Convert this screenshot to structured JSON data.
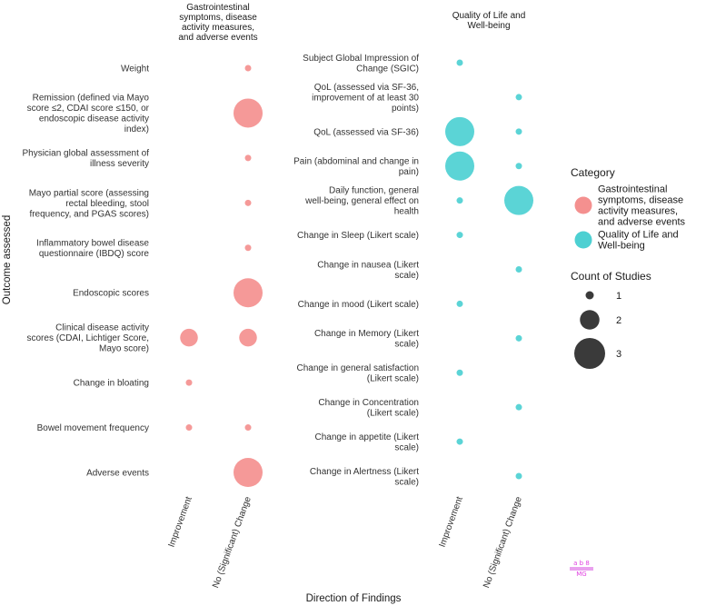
{
  "chart_data": {
    "type": "scatter",
    "xlabel": "Direction of Findings",
    "ylabel": "Outcome assessed",
    "x_categories": [
      "Improvement",
      "No (Significant) Change"
    ],
    "panels": [
      {
        "title": [
          "Gastrointestinal",
          "symptoms, disease",
          "activity measures,",
          "and adverse events"
        ],
        "category": "Gastrointestinal symptoms, disease activity measures, and adverse events",
        "color": "#F4908F",
        "rows": [
          {
            "label": [
              "Weight"
            ],
            "improvement": 0,
            "no_change": 1
          },
          {
            "label": [
              "Remission (defined via Mayo",
              "score ≤2, CDAI score ≤150, or",
              "endoscopic disease activity",
              "index)"
            ],
            "improvement": 0,
            "no_change": 3
          },
          {
            "label": [
              "Physician global assessment of",
              "illness severity"
            ],
            "improvement": 0,
            "no_change": 1
          },
          {
            "label": [
              "Mayo partial score (assessing",
              "rectal bleeding, stool",
              "frequency, and PGAS scores)"
            ],
            "improvement": 0,
            "no_change": 1
          },
          {
            "label": [
              "Inflammatory bowel disease",
              "questionnaire (IBDQ) score"
            ],
            "improvement": 0,
            "no_change": 1
          },
          {
            "label": [
              "Endoscopic scores"
            ],
            "improvement": 0,
            "no_change": 3
          },
          {
            "label": [
              "Clinical disease activity",
              "scores (CDAI, Lichtiger Score,",
              "Mayo score)"
            ],
            "improvement": 2,
            "no_change": 2
          },
          {
            "label": [
              "Change in bloating"
            ],
            "improvement": 1,
            "no_change": 0
          },
          {
            "label": [
              "Bowel movement frequency"
            ],
            "improvement": 1,
            "no_change": 1
          },
          {
            "label": [
              "Adverse events"
            ],
            "improvement": 0,
            "no_change": 3
          }
        ]
      },
      {
        "title": [
          "Quality of Life and",
          "Well-being"
        ],
        "category": "Quality of Life and Well-being",
        "color": "#4DD0D2",
        "rows": [
          {
            "label": [
              "Subject Global Impression of",
              "Change (SGIC)"
            ],
            "improvement": 1,
            "no_change": 0
          },
          {
            "label": [
              "QoL (assessed via SF-36,",
              "improvement of at least 30",
              "points)"
            ],
            "improvement": 0,
            "no_change": 1
          },
          {
            "label": [
              "QoL (assessed via SF-36)"
            ],
            "improvement": 3,
            "no_change": 1
          },
          {
            "label": [
              "Pain (abdominal and change in",
              "pain)"
            ],
            "improvement": 3,
            "no_change": 1
          },
          {
            "label": [
              "Daily function, general",
              "well-being, general effect on",
              "health"
            ],
            "improvement": 1,
            "no_change": 3
          },
          {
            "label": [
              "Change in Sleep (Likert scale)"
            ],
            "improvement": 1,
            "no_change": 0
          },
          {
            "label": [
              "Change in nausea (Likert",
              "scale)"
            ],
            "improvement": 0,
            "no_change": 1
          },
          {
            "label": [
              "Change in mood (Likert scale)"
            ],
            "improvement": 1,
            "no_change": 0
          },
          {
            "label": [
              "Change in Memory (Likert",
              "scale)"
            ],
            "improvement": 0,
            "no_change": 1
          },
          {
            "label": [
              "Change in general satisfaction",
              "(Likert scale)"
            ],
            "improvement": 1,
            "no_change": 0
          },
          {
            "label": [
              "Change in Concentration",
              "(Likert scale)"
            ],
            "improvement": 0,
            "no_change": 1
          },
          {
            "label": [
              "Change in appetite (Likert",
              "scale)"
            ],
            "improvement": 1,
            "no_change": 0
          },
          {
            "label": [
              "Change in Alertness (Likert",
              "scale)"
            ],
            "improvement": 0,
            "no_change": 1
          }
        ]
      }
    ],
    "legend": {
      "color_title": "Category",
      "color_items": [
        {
          "lines": [
            "Gastrointestinal",
            "symptoms, disease",
            "activity measures,",
            "and adverse events"
          ],
          "color": "#F4908F"
        },
        {
          "lines": [
            "Quality of Life and",
            "Well-being"
          ],
          "color": "#4DD0D2"
        }
      ],
      "size_title": "Count of Studies",
      "size_items": [
        1,
        2,
        3
      ],
      "placement": "right"
    },
    "grid": false
  },
  "watermark": {
    "line1": "a  b  8",
    "line2": "MG"
  }
}
